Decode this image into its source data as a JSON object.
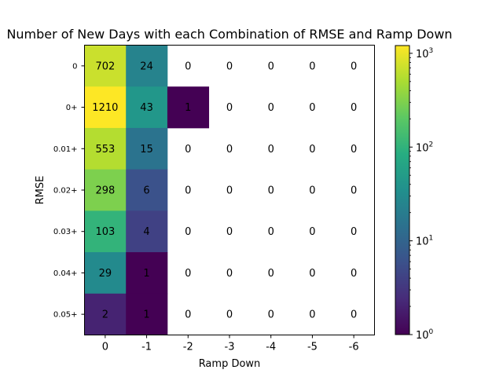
{
  "chart_data": {
    "type": "heatmap",
    "title": "Number of New Days with each Combination of RMSE and Ramp Down",
    "xlabel": "Ramp Down",
    "ylabel": "RMSE",
    "x_categories": [
      "0",
      "-1",
      "-2",
      "-3",
      "-4",
      "-5",
      "-6"
    ],
    "y_categories": [
      "0",
      "0+",
      "0.01+",
      "0.02+",
      "0.03+",
      "0.04+",
      "0.05+"
    ],
    "values": [
      [
        702,
        24,
        0,
        0,
        0,
        0,
        0
      ],
      [
        1210,
        43,
        1,
        0,
        0,
        0,
        0
      ],
      [
        553,
        15,
        0,
        0,
        0,
        0,
        0
      ],
      [
        298,
        6,
        0,
        0,
        0,
        0,
        0
      ],
      [
        103,
        4,
        0,
        0,
        0,
        0,
        0
      ],
      [
        29,
        1,
        0,
        0,
        0,
        0,
        0
      ],
      [
        2,
        1,
        0,
        0,
        0,
        0,
        0
      ]
    ],
    "color_scale": "log",
    "colormap": "viridis",
    "zero_color": "#ffffff",
    "clim": [
      1,
      1210
    ],
    "colorbar": {
      "ticks": [
        1,
        10,
        100,
        1000
      ],
      "tick_labels": [
        {
          "base": "10",
          "exp": "0"
        },
        {
          "base": "10",
          "exp": "1"
        },
        {
          "base": "10",
          "exp": "2"
        },
        {
          "base": "10",
          "exp": "3"
        }
      ]
    }
  }
}
